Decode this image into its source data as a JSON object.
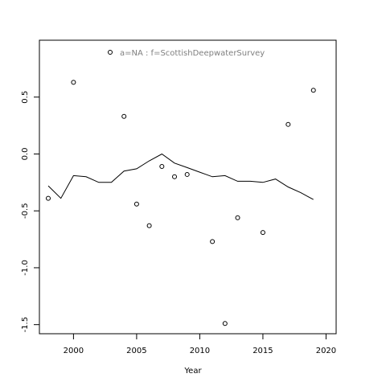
{
  "chart_data": {
    "type": "scatter",
    "legend": {
      "label": "a=NA  :  f=ScottishDeepwaterSurvey",
      "placement": "top-center",
      "label_color": "#808080"
    },
    "xlabel": "Year",
    "ylabel": "",
    "xlim": [
      1997.3,
      2020.8
    ],
    "ylim": [
      -1.58,
      1.0
    ],
    "x_ticks": [
      2000,
      2005,
      2010,
      2015,
      2020
    ],
    "y_ticks": [
      -1.5,
      -1.0,
      -0.5,
      0.0,
      0.5
    ],
    "x_tick_labels": [
      "2000",
      "2005",
      "2010",
      "2015",
      "2020"
    ],
    "y_tick_labels": [
      "-1.5",
      "-1.0",
      "-0.5",
      "0.0",
      "0.5"
    ],
    "grid": false,
    "series": [
      {
        "kind": "points",
        "marker": "open-circle",
        "color": "#000000",
        "points": [
          {
            "x": 1998,
            "y": -0.39
          },
          {
            "x": 2000,
            "y": 0.63
          },
          {
            "x": 2004,
            "y": 0.33
          },
          {
            "x": 2005,
            "y": -0.44
          },
          {
            "x": 2006,
            "y": -0.63
          },
          {
            "x": 2007,
            "y": -0.11
          },
          {
            "x": 2008,
            "y": -0.2
          },
          {
            "x": 2009,
            "y": -0.18
          },
          {
            "x": 2011,
            "y": -0.77
          },
          {
            "x": 2012,
            "y": -1.49
          },
          {
            "x": 2013,
            "y": -0.56
          },
          {
            "x": 2015,
            "y": -0.69
          },
          {
            "x": 2017,
            "y": 0.26
          },
          {
            "x": 2019,
            "y": 0.56
          }
        ]
      },
      {
        "kind": "line",
        "color": "#000000",
        "x": [
          1998,
          1999,
          2000,
          2001,
          2002,
          2003,
          2004,
          2005,
          2006,
          2007,
          2008,
          2009,
          2010,
          2011,
          2012,
          2013,
          2014,
          2015,
          2016,
          2017,
          2018,
          2019
        ],
        "y": [
          -0.28,
          -0.39,
          -0.19,
          -0.2,
          -0.25,
          -0.25,
          -0.15,
          -0.13,
          -0.06,
          0.0,
          -0.08,
          -0.12,
          -0.16,
          -0.2,
          -0.19,
          -0.24,
          -0.24,
          -0.25,
          -0.22,
          -0.29,
          -0.34,
          -0.4
        ]
      }
    ]
  }
}
